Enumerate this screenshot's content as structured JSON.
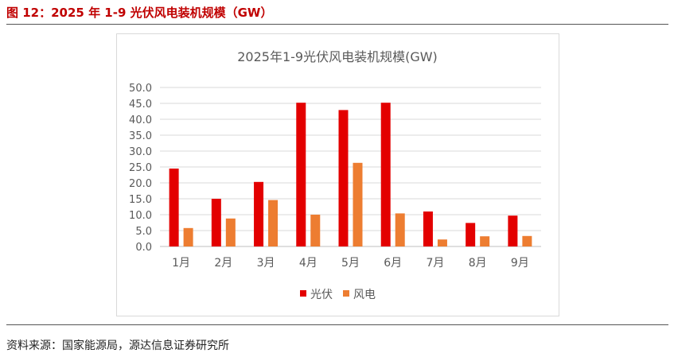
{
  "figure_caption": "图 12：2025 年 1-9 光伏风电装机规模（GW）",
  "source_note": "资料来源：国家能源局，源达信息证券研究所",
  "colors": {
    "pv": "#e30000",
    "wind": "#ed7d31",
    "caption": "#c00000"
  },
  "chart_data": {
    "type": "bar",
    "title": "2025年1-9光伏风电装机规模(GW)",
    "categories": [
      "1月",
      "2月",
      "3月",
      "4月",
      "5月",
      "6月",
      "7月",
      "8月",
      "9月"
    ],
    "series": [
      {
        "name": "光伏",
        "values": [
          24.5,
          15.0,
          20.3,
          45.2,
          42.9,
          45.2,
          11.0,
          7.4,
          9.7
        ]
      },
      {
        "name": "风电",
        "values": [
          5.8,
          8.8,
          14.6,
          10.0,
          26.3,
          10.4,
          2.2,
          3.2,
          3.3
        ]
      }
    ],
    "ylim": [
      0,
      50
    ],
    "yticks": [
      "0.0",
      "5.0",
      "10.0",
      "15.0",
      "20.0",
      "25.0",
      "30.0",
      "35.0",
      "40.0",
      "45.0",
      "50.0"
    ],
    "grid": true,
    "legend": "bottom"
  }
}
